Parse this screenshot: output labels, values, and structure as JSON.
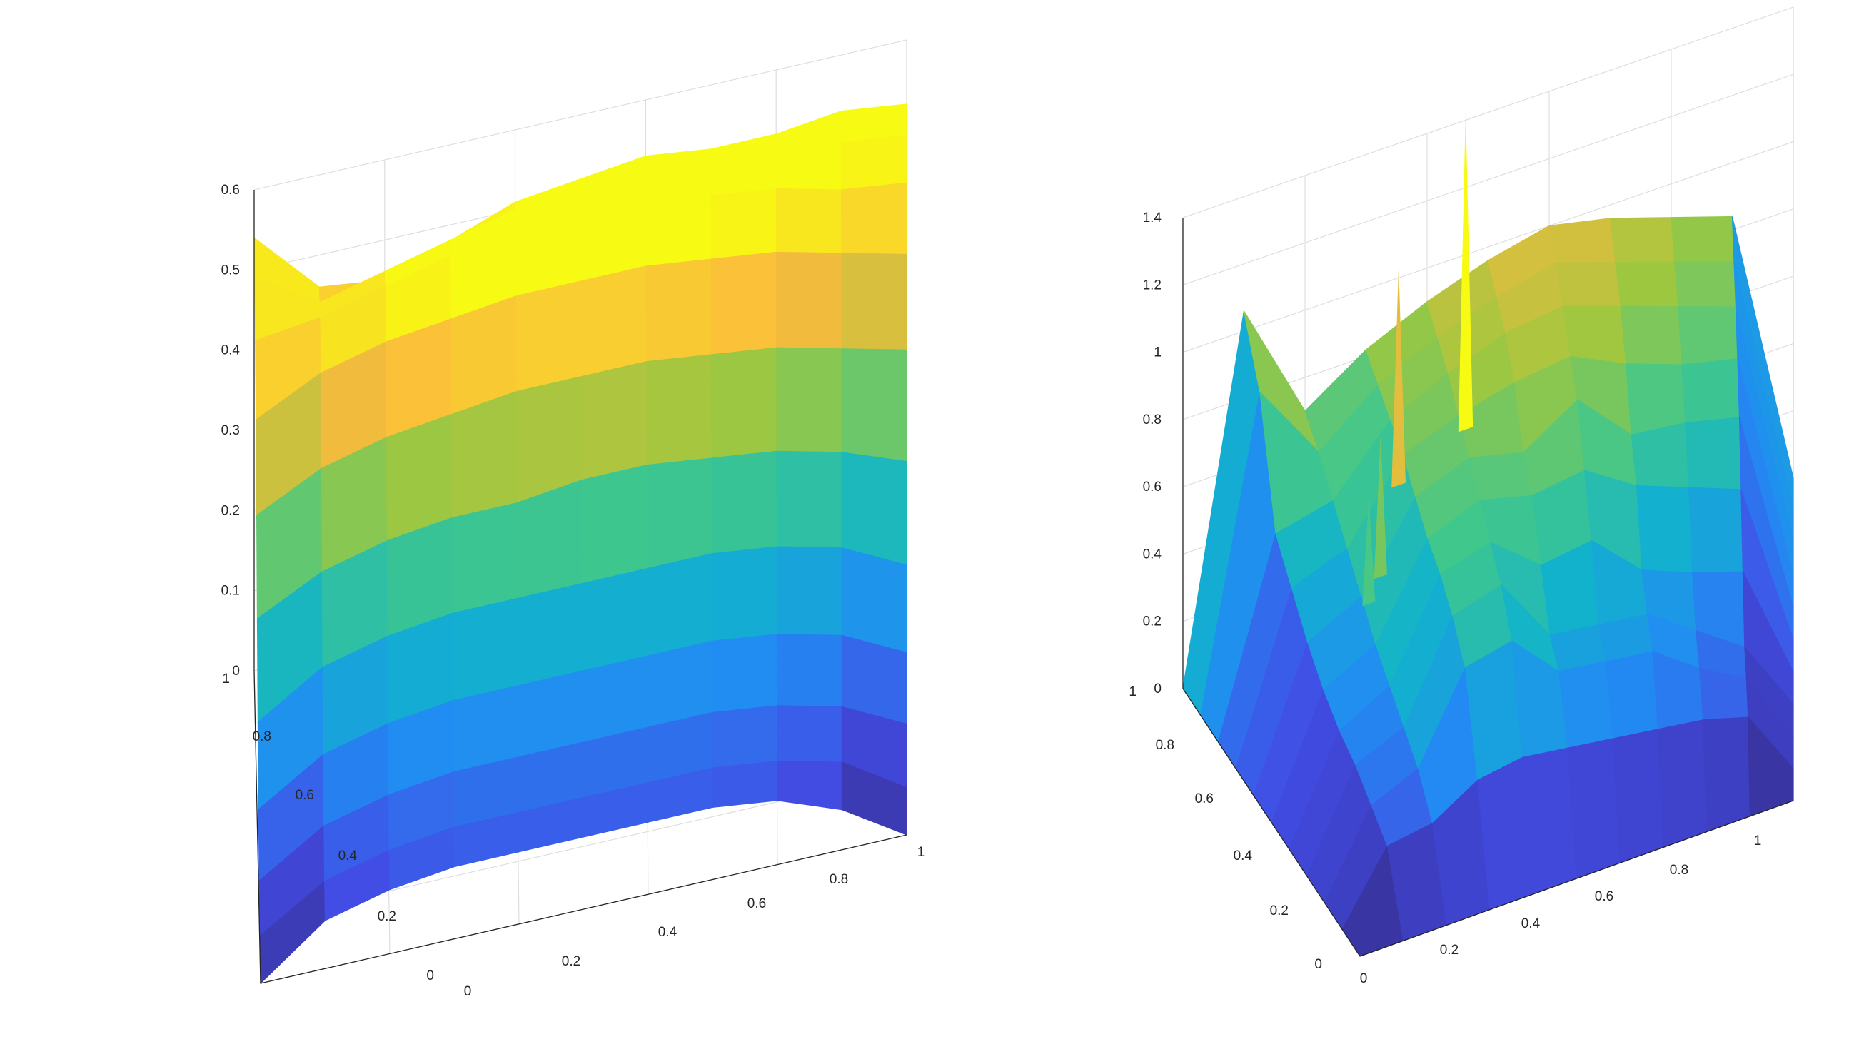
{
  "chart_data": [
    {
      "type": "surface",
      "title": "",
      "xlabel": "",
      "ylabel": "",
      "zlabel": "",
      "xlim": [
        0,
        1
      ],
      "ylim": [
        0,
        1
      ],
      "zlim": [
        0,
        0.6
      ],
      "x_ticks": [
        "0",
        "0.2",
        "0.4",
        "0.6",
        "0.8",
        "1"
      ],
      "y_ticks": [
        "0",
        "0.2",
        "0.4",
        "0.6",
        "0.8",
        "1"
      ],
      "z_ticks": [
        "0",
        "0.1",
        "0.2",
        "0.3",
        "0.4",
        "0.5",
        "0.6"
      ],
      "grid": true,
      "colormap": "parula",
      "x": [
        0,
        0.1,
        0.2,
        0.3,
        0.4,
        0.5,
        0.6,
        0.7,
        0.8,
        0.9,
        1
      ],
      "y": [
        0,
        0.1,
        0.2,
        0.3,
        0.4,
        0.5,
        0.6,
        0.7,
        0.8,
        0.9,
        1
      ],
      "z_corners": {
        "x0_y0": 0.0,
        "x1_y0": 0.0,
        "x0_y1": 0.54,
        "x1_y1": 0.52
      },
      "z_peak": {
        "x": 0.55,
        "y": 0.85,
        "z": 0.56
      },
      "z_grid": [
        [
          0.0,
          0.06,
          0.08,
          0.09,
          0.09,
          0.09,
          0.09,
          0.09,
          0.08,
          0.05,
          0.0
        ],
        [
          0.02,
          0.07,
          0.09,
          0.1,
          0.1,
          0.1,
          0.1,
          0.1,
          0.09,
          0.07,
          0.02
        ],
        [
          0.05,
          0.1,
          0.12,
          0.13,
          0.13,
          0.13,
          0.13,
          0.13,
          0.12,
          0.1,
          0.06
        ],
        [
          0.1,
          0.15,
          0.17,
          0.18,
          0.18,
          0.18,
          0.18,
          0.18,
          0.17,
          0.15,
          0.11
        ],
        [
          0.17,
          0.22,
          0.24,
          0.25,
          0.25,
          0.25,
          0.25,
          0.25,
          0.24,
          0.22,
          0.18
        ],
        [
          0.26,
          0.3,
          0.32,
          0.33,
          0.33,
          0.34,
          0.34,
          0.33,
          0.32,
          0.3,
          0.27
        ],
        [
          0.35,
          0.39,
          0.41,
          0.42,
          0.43,
          0.43,
          0.43,
          0.42,
          0.41,
          0.39,
          0.37
        ],
        [
          0.43,
          0.47,
          0.49,
          0.5,
          0.51,
          0.51,
          0.51,
          0.5,
          0.49,
          0.47,
          0.45
        ],
        [
          0.49,
          0.5,
          0.52,
          0.54,
          0.55,
          0.56,
          0.55,
          0.54,
          0.53,
          0.51,
          0.5
        ],
        [
          0.53,
          0.48,
          0.5,
          0.52,
          0.54,
          0.55,
          0.55,
          0.54,
          0.53,
          0.53,
          0.52
        ],
        [
          0.54,
          0.46,
          0.45,
          0.48,
          0.51,
          0.52,
          0.53,
          0.52,
          0.52,
          0.53,
          0.52
        ]
      ]
    },
    {
      "type": "surface",
      "title": "",
      "xlabel": "",
      "ylabel": "",
      "zlabel": "",
      "xlim": [
        0,
        1
      ],
      "ylim": [
        0,
        1
      ],
      "zlim": [
        0,
        1.4
      ],
      "x_ticks": [
        "0",
        "0.2",
        "0.4",
        "0.6",
        "0.8",
        "1"
      ],
      "y_ticks": [
        "0",
        "0.2",
        "0.4",
        "0.6",
        "0.8",
        "1"
      ],
      "z_ticks": [
        "0",
        "0.2",
        "0.4",
        "0.6",
        "0.8",
        "1",
        "1.2",
        "1.4"
      ],
      "grid": true,
      "colormap": "parula",
      "x": [
        0,
        0.1,
        0.2,
        0.3,
        0.4,
        0.5,
        0.6,
        0.7,
        0.8,
        0.9,
        1
      ],
      "y": [
        0,
        0.1,
        0.2,
        0.3,
        0.4,
        0.5,
        0.6,
        0.7,
        0.8,
        0.9,
        1
      ],
      "spikes": [
        {
          "x": 0.24,
          "y": 0.62,
          "z": 0.92
        },
        {
          "x": 0.33,
          "y": 0.88,
          "z": 1.15
        },
        {
          "x": 0.46,
          "y": 0.98,
          "z": 1.45
        },
        {
          "x": 0.2,
          "y": 0.55,
          "z": 0.82
        }
      ],
      "z_grid": [
        [
          0.0,
          0.0,
          0.0,
          0.0,
          0.0,
          0.0,
          0.0,
          0.0,
          0.0,
          0.0,
          0.0
        ],
        [
          0.0,
          0.2,
          0.22,
          0.3,
          0.32,
          0.3,
          0.28,
          0.26,
          0.24,
          0.2,
          0.0
        ],
        [
          0.0,
          0.24,
          0.3,
          0.55,
          0.58,
          0.44,
          0.42,
          0.4,
          0.3,
          0.22,
          0.0
        ],
        [
          0.0,
          0.28,
          0.34,
          0.62,
          0.66,
          0.46,
          0.44,
          0.42,
          0.32,
          0.22,
          0.0
        ],
        [
          0.0,
          0.3,
          0.38,
          0.66,
          0.7,
          0.58,
          0.6,
          0.46,
          0.4,
          0.35,
          0.0
        ],
        [
          0.0,
          0.34,
          0.42,
          0.68,
          0.74,
          0.7,
          0.72,
          0.62,
          0.56,
          0.5,
          0.0
        ],
        [
          0.0,
          0.4,
          0.48,
          0.72,
          0.78,
          0.74,
          0.84,
          0.68,
          0.66,
          0.62,
          0.0
        ],
        [
          0.0,
          0.48,
          0.54,
          0.76,
          0.82,
          0.86,
          0.88,
          0.8,
          0.74,
          0.7,
          0.0
        ],
        [
          0.0,
          0.56,
          0.6,
          0.78,
          0.86,
          0.92,
          0.94,
          0.88,
          0.82,
          0.76,
          0.0
        ],
        [
          0.0,
          0.9,
          0.66,
          0.8,
          0.88,
          0.94,
          0.98,
          0.92,
          0.86,
          0.8,
          0.0
        ],
        [
          0.0,
          1.06,
          0.7,
          0.82,
          0.9,
          0.96,
          1.0,
          0.96,
          0.9,
          0.84,
          0.0
        ]
      ]
    }
  ]
}
